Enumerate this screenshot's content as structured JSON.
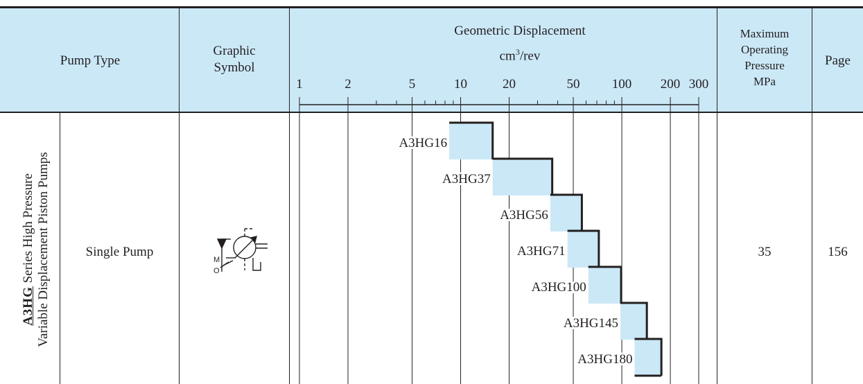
{
  "header": {
    "pump_type": "Pump Type",
    "graphic_symbol_line1": "Graphic",
    "graphic_symbol_line2": "Symbol",
    "displacement_title": "Geometric Displacement",
    "displacement_unit_prefix": "cm",
    "displacement_unit_sup": "3",
    "displacement_unit_suffix": "/rev",
    "max_pressure_line1": "Maximum",
    "max_pressure_line2": "Operating",
    "max_pressure_line3": "Pressure",
    "max_pressure_line4": "MPa",
    "page": "Page"
  },
  "series": {
    "logo": "A3HG",
    "line1_suffix": "Series High Pressure",
    "line2": "Variable Displacement Piston Pumps"
  },
  "row": {
    "pump_type": "Single Pump",
    "symbol_m": "M",
    "symbol_o": "O",
    "max_pressure": "35",
    "page": "156"
  },
  "chart_data": {
    "type": "bar",
    "xscale": "log",
    "xlim": [
      1,
      300
    ],
    "xticks": [
      "1",
      "2",
      "5",
      "10",
      "20",
      "50",
      "100",
      "200",
      "300"
    ],
    "bars": [
      {
        "name": "A3HG16",
        "min": 8.5,
        "max": 15.8
      },
      {
        "name": "A3HG37",
        "min": 15.8,
        "max": 37
      },
      {
        "name": "A3HG56",
        "min": 36,
        "max": 56.5
      },
      {
        "name": "A3HG71",
        "min": 46,
        "max": 72
      },
      {
        "name": "A3HG100",
        "min": 62,
        "max": 99
      },
      {
        "name": "A3HG145",
        "min": 98,
        "max": 143
      },
      {
        "name": "A3HG180",
        "min": 120,
        "max": 176
      }
    ],
    "colors": {
      "fill": "#cbe8f7",
      "stroke": "#231f20"
    }
  }
}
